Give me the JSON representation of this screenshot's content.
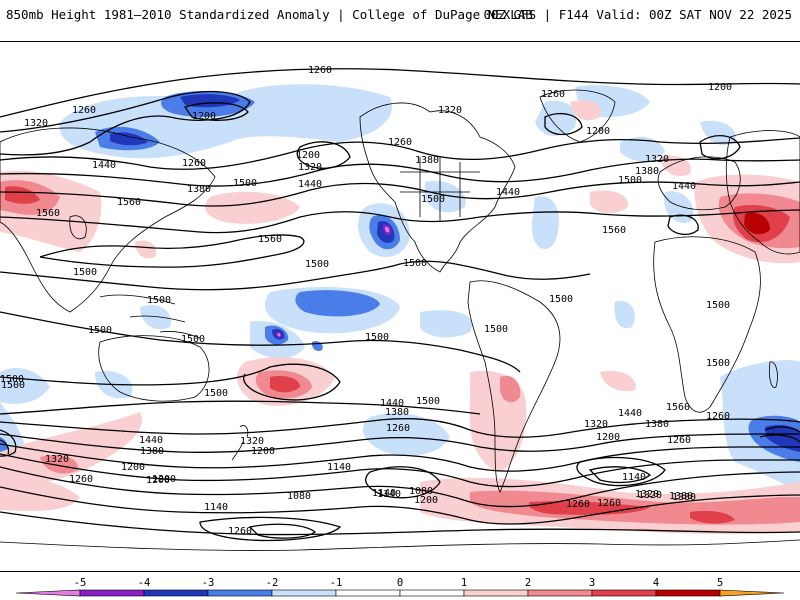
{
  "header": {
    "title": "850mb Height 1981–2010 Standardized Anomaly | College of DuPage NEXLAB",
    "run_info": "00Z GFS | F144 Valid: 00Z SAT NOV 22 2025"
  },
  "colors": {
    "neg5": "#e07ee0",
    "neg4": "#8a1fc8",
    "neg3": "#1f37b8",
    "neg2": "#4a7de8",
    "neg1": "#c8e0fa",
    "zero": "#ffffff",
    "pos1": "#f9cfd2",
    "pos2": "#f08a90",
    "pos3": "#e0404a",
    "pos4": "#b80000",
    "pos5": "#f8a020",
    "contour": "#000000",
    "land": "#000000"
  },
  "colorbar": {
    "ticks": [
      "-5",
      "-4",
      "-3",
      "-2",
      "-1",
      "0",
      "1",
      "2",
      "3",
      "4",
      "5"
    ]
  },
  "contour_labels": [
    "1260",
    "1200",
    "1320",
    "1260",
    "1260",
    "1320",
    "1260",
    "1200",
    "1260",
    "1200",
    "1320",
    "1200",
    "1320",
    "1380",
    "1440",
    "1380",
    "1440",
    "1440",
    "1500",
    "1380",
    "1500",
    "1440",
    "1560",
    "1560",
    "1560",
    "1500",
    "1560",
    "1500",
    "1500",
    "1500",
    "1500",
    "1500",
    "1500",
    "1500",
    "1500",
    "1500",
    "1500",
    "1500",
    "1500",
    "1500",
    "1440",
    "1380",
    "1320",
    "1260",
    "1200",
    "1140",
    "1080",
    "1140",
    "1080",
    "1200",
    "1260",
    "1320",
    "1380",
    "1320",
    "1260",
    "1200",
    "1140",
    "1440",
    "1380",
    "1260",
    "1200",
    "1140",
    "1260",
    "1200",
    "1320",
    "1380",
    "1440",
    "1560",
    "1500",
    "1500",
    "1260",
    "1200",
    "1140",
    "1320",
    "1380",
    "1260"
  ]
}
